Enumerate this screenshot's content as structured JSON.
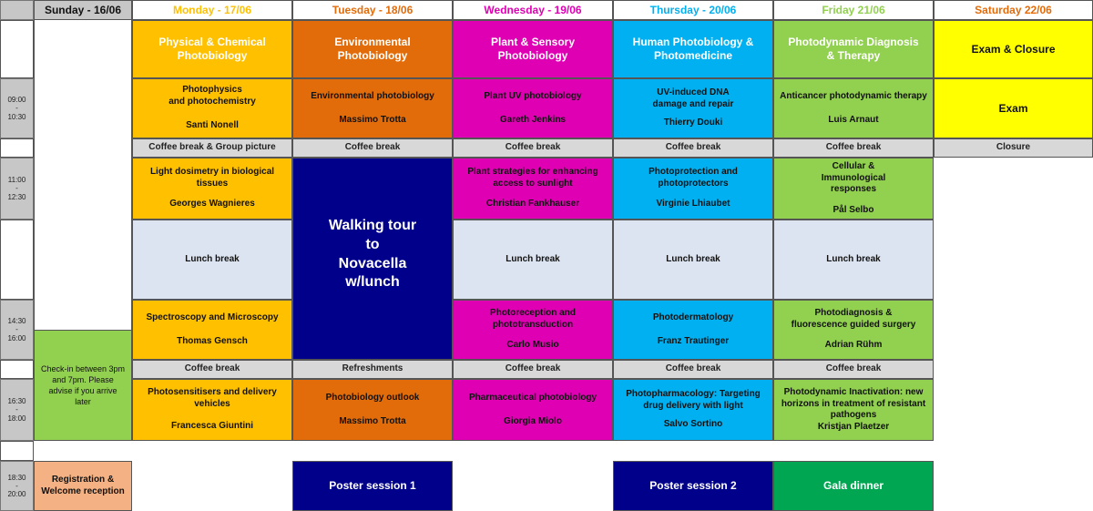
{
  "headers": {
    "sunday": "Sunday - 16/06",
    "monday": "Monday - 17/06",
    "tuesday": "Tuesday - 18/06",
    "wednesday": "Wednesday - 19/06",
    "thursday": "Thursday - 20/06",
    "friday": "Friday 21/06",
    "saturday": "Saturday 22/06"
  },
  "colors": {
    "monday": "#ffc000",
    "tuesday": "#e36c0a",
    "wednesday": "#e000b4",
    "thursday": "#00b0f0",
    "friday": "#92d050",
    "saturday": "#ffff00",
    "walking_tour": "#00008b",
    "poster": "#00008b",
    "gala": "#00a651",
    "registration": "#f4b183",
    "checkin": "#92d050"
  },
  "times": {
    "t1_start": "09:00",
    "t1_dash": "-",
    "t1_end": "10:30",
    "t2_start": "11:00",
    "t2_dash": "-",
    "t2_end": "12:30",
    "t3_start": "14:30",
    "t3_dash": "-",
    "t3_end": "16:00",
    "t4_start": "16:30",
    "t4_dash": "-",
    "t4_end": "18:00",
    "t5_start": "18:30",
    "t5_dash": "-",
    "t5_end": "20:00"
  },
  "themes": {
    "monday": "Physical & Chemical Photobiology",
    "tuesday": "Environmental Photobiology",
    "wednesday": "Plant & Sensory Photobiology",
    "thursday": "Human Photobiology & Photomedicine",
    "friday": "Photodynamic Diagnosis & Therapy",
    "saturday": "Exam & Closure"
  },
  "s1": {
    "monday_title_1": "Photophysics",
    "monday_title_2": "and photochemistry",
    "monday_speaker": "Santi Nonell",
    "tuesday_title": "Environmental photobiology",
    "tuesday_speaker": "Massimo Trotta",
    "wednesday_title": "Plant UV photobiology",
    "wednesday_speaker": "Gareth Jenkins",
    "thursday_title": "UV-induced DNA damage and repair",
    "thursday_speaker": "Thierry Douki",
    "friday_title": "Anticancer photodynamic therapy",
    "friday_speaker": "Luis Arnaut",
    "saturday_title": "Exam"
  },
  "break1": {
    "monday": "Coffee break & Group picture",
    "tuesday": "Coffee break",
    "wednesday": "Coffee break",
    "thursday": "Coffee break",
    "friday": "Coffee break",
    "saturday": "Closure"
  },
  "s2": {
    "monday_title": "Light dosimetry in biological tissues",
    "monday_speaker": "Georges Wagnieres",
    "wednesday_title": "Plant strategies for enhancing access to sunlight",
    "wednesday_speaker": "Christian Fankhauser",
    "thursday_title": "Photoprotection and photoprotectors",
    "thursday_speaker": "Virginie Lhiaubet",
    "friday_title": "Cellular & Immunological responses",
    "friday_speaker": "Pål Selbo"
  },
  "walking_tour": {
    "line1": "Walking tour",
    "line2": "to",
    "line3": "Novacella",
    "line4": "w/lunch"
  },
  "lunch": {
    "monday": "Lunch break",
    "wednesday": "Lunch break",
    "thursday": "Lunch break",
    "friday": "Lunch break"
  },
  "s3": {
    "monday_title": "Spectroscopy and Microscopy",
    "monday_speaker": "Thomas Gensch",
    "wednesday_title": "Photoreception and phototransduction",
    "wednesday_speaker": "Carlo Musio",
    "thursday_title": "Photodermatology",
    "thursday_speaker": "Franz Trautinger",
    "friday_title": "Photodiagnosis & fluorescence guided surgery",
    "friday_speaker": "Adrian Rühm"
  },
  "break2": {
    "monday": "Coffee break",
    "tuesday": "Refreshments",
    "wednesday": "Coffee break",
    "thursday": "Coffee break",
    "friday": "Coffee break"
  },
  "checkin": "Check-in between 3pm and 7pm. Please advise if you arrive later",
  "s4": {
    "monday_title": "Photosensitisers and delivery vehicles",
    "monday_speaker": "Francesca Giuntini",
    "tuesday_title": "Photobiology outlook",
    "tuesday_speaker": "Massimo Trotta",
    "wednesday_title": "Pharmaceutical photobiology",
    "wednesday_speaker": "Giorgia Miolo",
    "thursday_title": "Photopharmacology: Targeting drug delivery with light",
    "thursday_speaker": "Salvo Sortino",
    "friday_title": "Photodynamic Inactivation: new horizons in treatment of resistant pathogens",
    "friday_speaker": "Kristjan Plaetzer"
  },
  "evening": {
    "registration": "Registration & Welcome reception",
    "poster1": "Poster session 1",
    "poster2": "Poster session 2",
    "gala": "Gala dinner"
  }
}
